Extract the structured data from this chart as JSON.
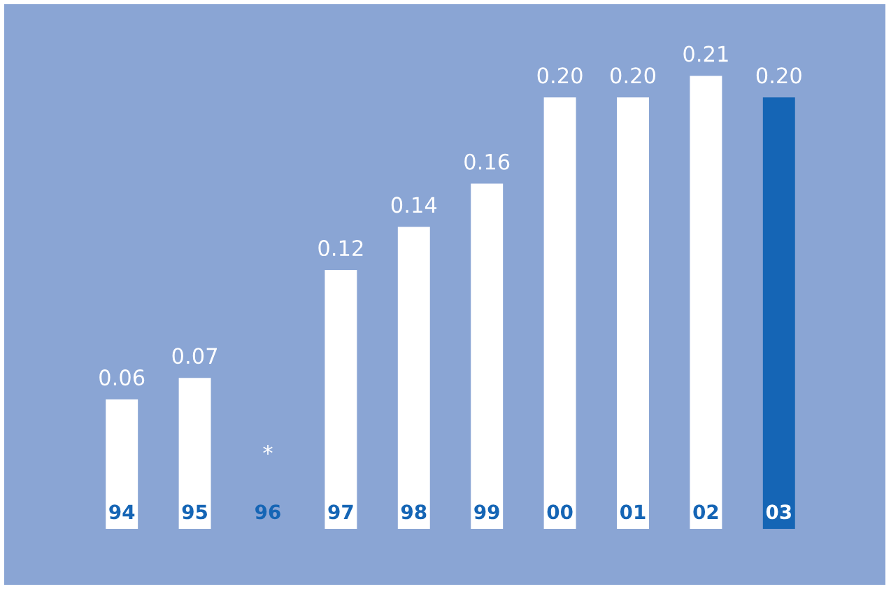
{
  "chart_data": {
    "type": "bar",
    "categories": [
      "94",
      "95",
      "96",
      "97",
      "98",
      "99",
      "00",
      "01",
      "02",
      "03"
    ],
    "values": [
      0.06,
      0.07,
      null,
      0.12,
      0.14,
      0.16,
      0.2,
      0.2,
      0.21,
      0.2
    ],
    "value_labels": [
      "0.06",
      "0.07",
      "*",
      "0.12",
      "0.14",
      "0.16",
      "0.20",
      "0.20",
      "0.21",
      "0.20"
    ],
    "colors": [
      "#ffffff",
      "#ffffff",
      "#ffffff",
      "#ffffff",
      "#ffffff",
      "#ffffff",
      "#ffffff",
      "#ffffff",
      "#ffffff",
      "#1565b5"
    ]
  }
}
